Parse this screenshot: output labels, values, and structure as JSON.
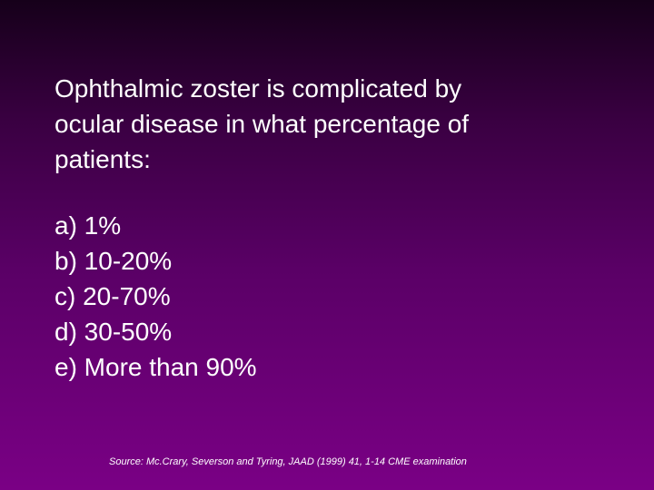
{
  "question": {
    "lines": [
      "Ophthalmic zoster is complicated by",
      "ocular disease in what percentage of",
      "patients:"
    ]
  },
  "options": [
    "a) 1%",
    "b) 10-20%",
    "c) 20-70%",
    "d) 30-50%",
    "e) More than 90%"
  ],
  "source": "Source: Mc.Crary, Severson and Tyring, JAAD (1999) 41, 1-14 CME examination"
}
